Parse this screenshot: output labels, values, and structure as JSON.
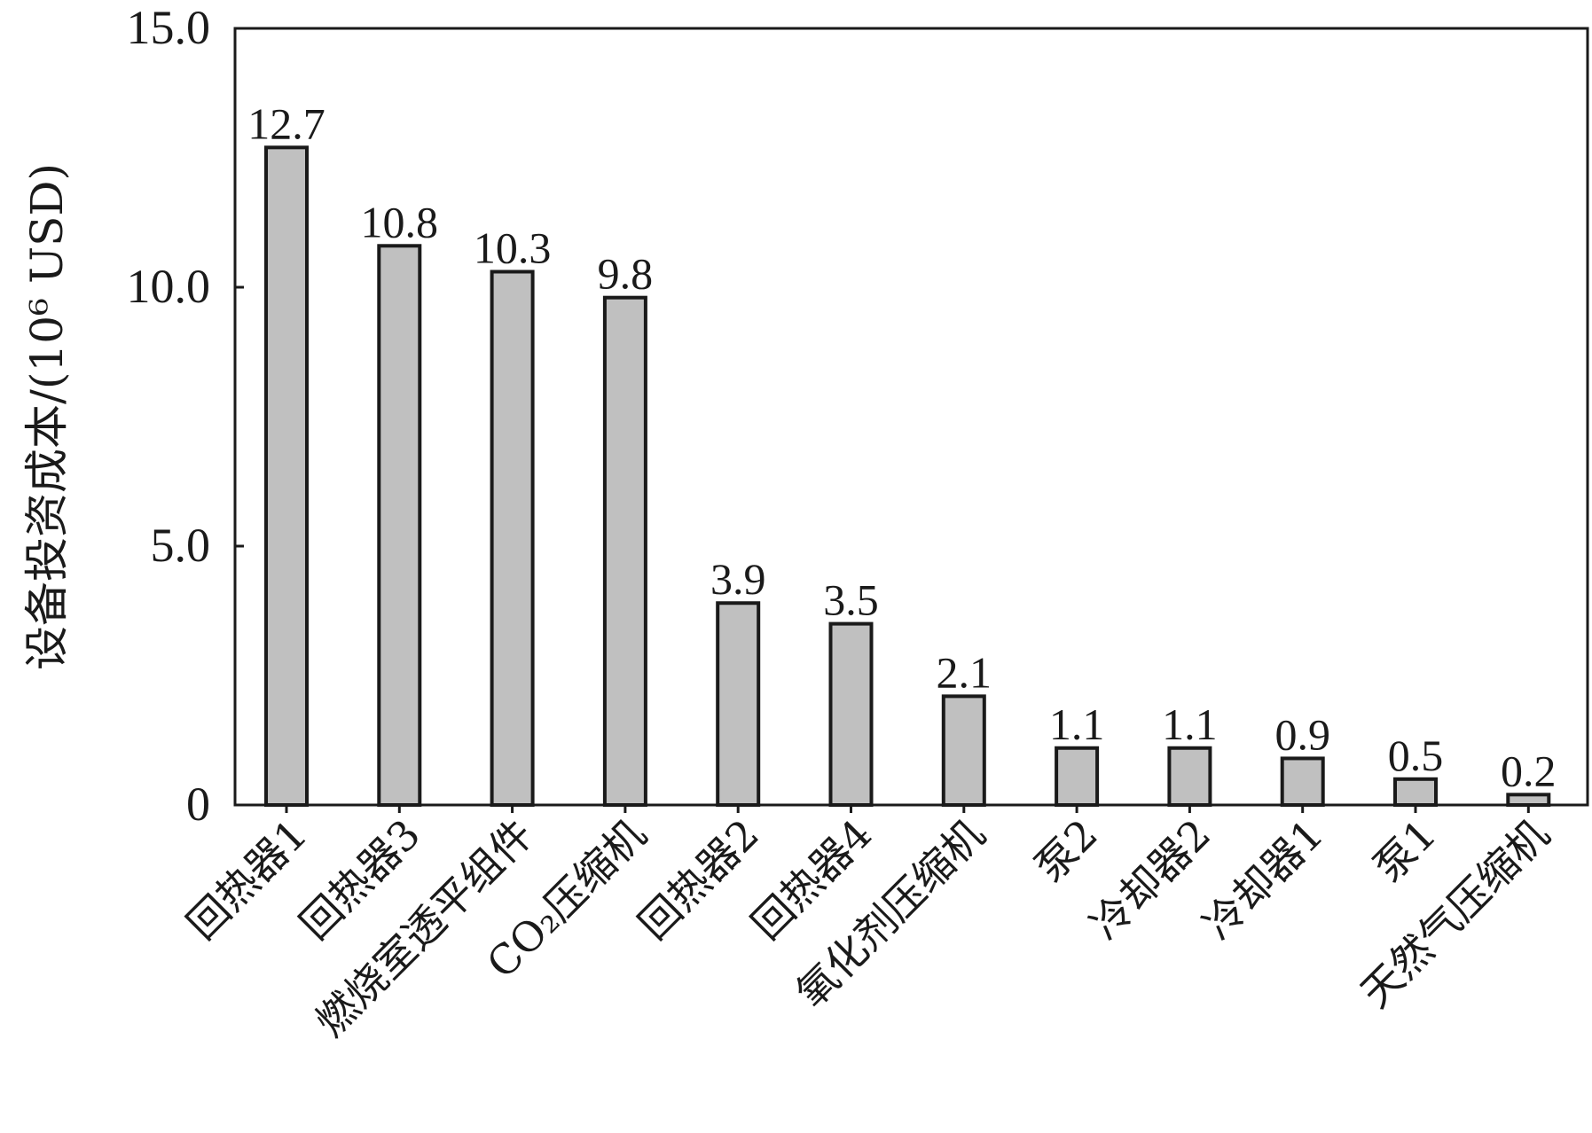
{
  "chart_data": {
    "type": "bar",
    "categories": [
      "回热器1",
      "回热器3",
      "燃烧室透平组件",
      "CO₂压缩机",
      "回热器2",
      "回热器4",
      "氧化剂压缩机",
      "泵2",
      "冷却器2",
      "冷却器1",
      "泵1",
      "天然气压缩机"
    ],
    "values": [
      12.7,
      10.8,
      10.3,
      9.8,
      3.9,
      3.5,
      2.1,
      1.1,
      1.1,
      0.9,
      0.5,
      0.2
    ],
    "value_labels": [
      "12.7",
      "10.8",
      "10.3",
      "9.8",
      "3.9",
      "3.5",
      "2.1",
      "1.1",
      "1.1",
      "0.9",
      "0.5",
      "0.2"
    ],
    "title": "",
    "xlabel": "",
    "ylabel": "设备投资成本/(10⁶ USD)",
    "ylim": [
      0,
      15
    ],
    "yticks": [
      0,
      5,
      10,
      15
    ],
    "ytick_labels": [
      "0",
      "5.0",
      "10.0",
      "15.0"
    ],
    "grid": false,
    "bar_color": "#c0c0c0",
    "bar_edge_color": "#1a1a1a"
  }
}
